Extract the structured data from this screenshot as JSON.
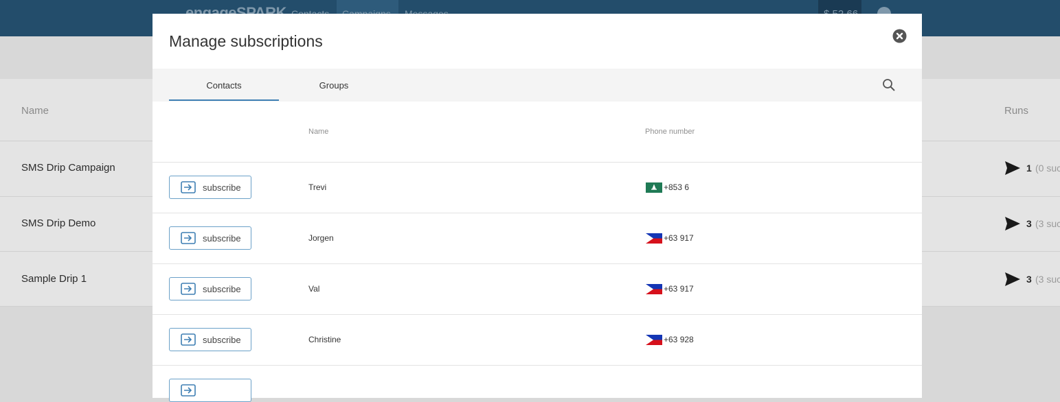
{
  "header": {
    "logo": "engageSPARK",
    "nav": [
      "Contacts",
      "Campaigns",
      "Messages"
    ],
    "balance": "$ 52.66"
  },
  "background_table": {
    "columns": [
      "Name",
      "Runs"
    ],
    "rows": [
      {
        "name": "SMS Drip Campaign",
        "runs": "1",
        "runs_detail": "(0 suc"
      },
      {
        "name": "SMS Drip Demo",
        "runs": "3",
        "runs_detail": "(3 suc"
      },
      {
        "name": "Sample Drip 1",
        "runs": "3",
        "runs_detail": "(3 suc"
      }
    ]
  },
  "modal": {
    "title": "Manage subscriptions",
    "tabs": [
      "Contacts",
      "Groups"
    ],
    "columns": [
      "Name",
      "Phone number"
    ],
    "rows": [
      {
        "action": "subscribe",
        "name": "Trevi",
        "phone": "+853 6",
        "flag": "mo"
      },
      {
        "action": "subscribe",
        "name": "Jorgen",
        "phone": "+63 917",
        "flag": "ph"
      },
      {
        "action": "subscribe",
        "name": "Val",
        "phone": "+63 917",
        "flag": "ph"
      },
      {
        "action": "subscribe",
        "name": "Christine",
        "phone": "+63 928",
        "flag": "ph"
      }
    ]
  }
}
